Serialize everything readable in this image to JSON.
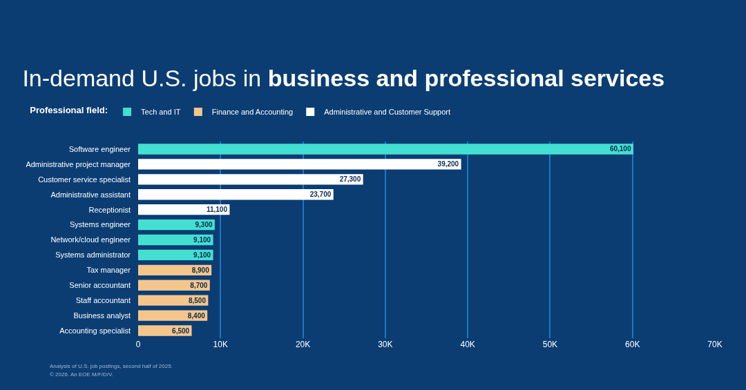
{
  "chart_data": {
    "type": "bar",
    "orientation": "horizontal",
    "stacked": true,
    "title": "In-demand U.S. jobs in $^{}$business and professional services",
    "legend_title": "Professional field:",
    "categories": [
      "Software engineer",
      "Administrative project manager",
      "Customer service specialist",
      "Administrative assistant",
      "Receptionist",
      "Systems engineer",
      "Network/cloud engineer",
      "Systems administrator",
      "Tax manager",
      "Senior accountant",
      "Staff accountant",
      "Business analyst",
      "Accounting specialist"
    ],
    "series": [
      {
        "name": "Tech and IT",
        "color": "#43e0d2",
        "values": [
          60100,
          null,
          null,
          null,
          null,
          9300,
          9100,
          9100,
          null,
          null,
          null,
          null,
          null
        ],
        "value_labels": [
          "60,100",
          null,
          null,
          null,
          null,
          "9,300",
          "9,100",
          "9,100",
          null,
          null,
          null,
          null,
          null
        ]
      },
      {
        "name": "Finance and Accounting",
        "color": "#f5c68c",
        "values": [
          null,
          null,
          null,
          null,
          null,
          null,
          null,
          null,
          8900,
          8700,
          8500,
          8400,
          6500
        ],
        "value_labels": [
          null,
          null,
          null,
          null,
          null,
          null,
          null,
          null,
          "8,900",
          "8,700",
          "8,500",
          "8,400",
          "6,500"
        ]
      },
      {
        "name": "Administrative and Customer Support",
        "color": "#ffffff",
        "values": [
          null,
          39200,
          27300,
          23700,
          11100,
          null,
          null,
          null,
          null,
          null,
          null,
          null,
          null
        ],
        "value_labels": [
          null,
          "39,200",
          "27,300",
          "23,700",
          "11,100",
          null,
          null,
          null,
          null,
          null,
          null,
          null,
          null
        ]
      }
    ],
    "xlim": [
      0,
      70000
    ],
    "xticks": [
      0,
      {
        "value": 10000,
        "label": "10K"
      },
      {
        "value": 20000,
        "label": "20K"
      },
      {
        "value": 30000,
        "label": "30K"
      },
      {
        "value": 40000,
        "label": "40K"
      },
      {
        "value": 50000,
        "label": "50K"
      },
      {
        "value": 60000,
        "label": "60K"
      },
      {
        "value": 70000,
        "label": "70K"
      }
    ],
    "grid": "x",
    "legend": "top left",
    "annotations": [
      "Analysis of U.S. job postings, second half of 2025.",
      "© 2026. An EOE M/F/D/V."
    ]
  }
}
